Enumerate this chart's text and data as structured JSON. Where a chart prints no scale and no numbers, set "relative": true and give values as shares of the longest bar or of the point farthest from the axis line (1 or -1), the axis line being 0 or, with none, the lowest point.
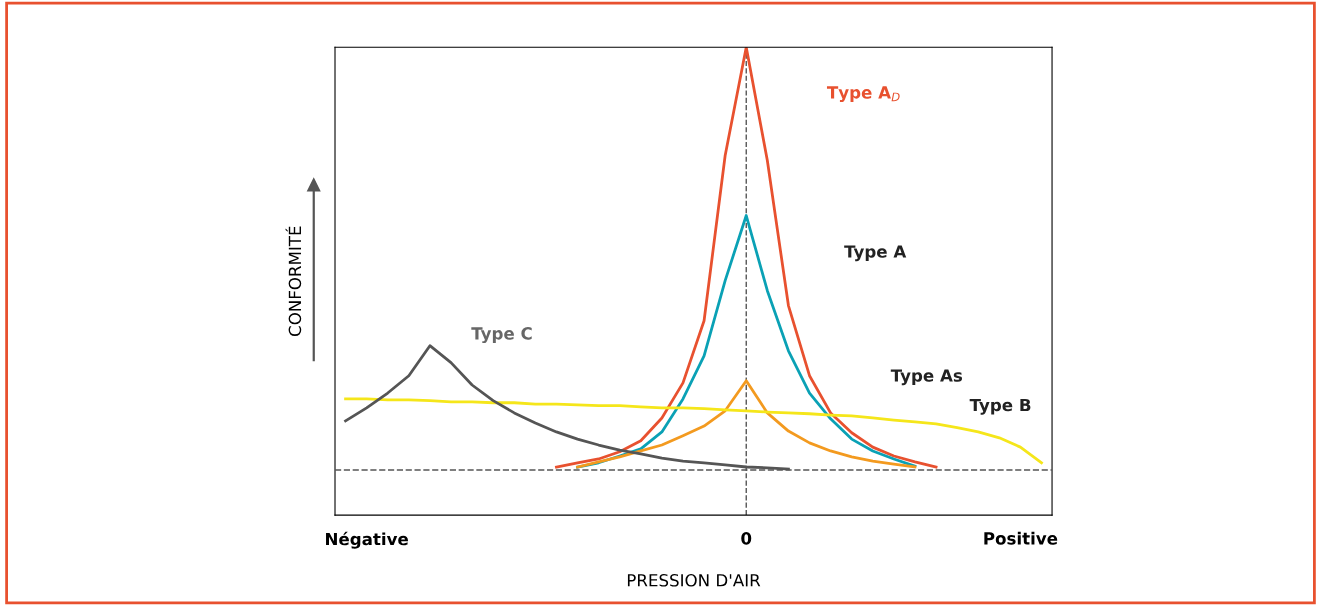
{
  "chart_data": {
    "type": "line",
    "relative": true,
    "xlabel": "PRESSION D'AIR",
    "ylabel": "CONFORMITÉ",
    "categories": [
      null,
      "Négative",
      null,
      null,
      null,
      null,
      null,
      null,
      null,
      null,
      null,
      null,
      null,
      null,
      null,
      null,
      null,
      null,
      null,
      "0",
      null,
      null,
      null,
      null,
      null,
      null,
      null,
      null,
      null,
      null,
      null,
      null,
      "Positive",
      null
    ],
    "grid": false,
    "legend": false,
    "marker": "none",
    "line_style": "solid",
    "ref_lines": [
      {
        "axis": "x",
        "value": "0",
        "label": null,
        "color": "#555555",
        "line_style": "dashed"
      }
    ],
    "series": [
      {
        "color": "#e8512f",
        "values": [
          null,
          null,
          null,
          null,
          null,
          null,
          null,
          null,
          null,
          null,
          0.007,
          0.017,
          0.026,
          0.043,
          0.069,
          0.123,
          0.206,
          0.353,
          0.744,
          1.0,
          0.732,
          0.389,
          0.223,
          0.135,
          0.088,
          0.054,
          0.033,
          0.019,
          0.007,
          null,
          null,
          null,
          null,
          null
        ]
      },
      {
        "color": "#0aa1b5",
        "values": [
          null,
          null,
          null,
          null,
          null,
          null,
          null,
          null,
          null,
          null,
          null,
          0.007,
          0.017,
          0.033,
          0.05,
          0.09,
          0.168,
          0.27,
          0.448,
          0.602,
          0.424,
          0.282,
          0.182,
          0.121,
          0.073,
          0.045,
          0.026,
          0.009,
          null,
          null,
          null,
          null,
          null,
          null
        ]
      },
      {
        "color": "#f39a1f",
        "values": [
          null,
          null,
          null,
          null,
          null,
          null,
          null,
          null,
          null,
          null,
          null,
          0.007,
          0.019,
          0.031,
          0.045,
          0.059,
          0.081,
          0.104,
          0.14,
          0.211,
          0.135,
          0.092,
          0.064,
          0.045,
          0.031,
          0.021,
          0.014,
          0.007,
          null,
          null,
          null,
          null,
          null,
          null
        ]
      },
      {
        "color": "#f5e61a",
        "values": [
          0.168,
          0.168,
          0.166,
          0.166,
          0.164,
          0.161,
          0.161,
          0.159,
          0.159,
          0.156,
          0.156,
          0.154,
          0.152,
          0.152,
          0.149,
          0.147,
          0.147,
          0.145,
          0.142,
          0.14,
          0.137,
          0.135,
          0.133,
          0.13,
          0.128,
          0.123,
          0.118,
          0.114,
          0.109,
          0.1,
          0.09,
          0.076,
          0.054,
          0.017
        ]
      },
      {
        "color": "#555555",
        "values": [
          0.116,
          0.147,
          0.182,
          0.223,
          0.294,
          0.254,
          0.201,
          0.164,
          0.135,
          0.111,
          0.09,
          0.073,
          0.059,
          0.047,
          0.038,
          0.028,
          0.021,
          0.017,
          0.012,
          0.007,
          0.005,
          0.002,
          null,
          null,
          null,
          null,
          null,
          null,
          null,
          null,
          null,
          null,
          null,
          null
        ]
      }
    ],
    "annotations": [
      "Type A$_{D}$",
      "Type A",
      "Type As",
      "Type B",
      "Type C"
    ]
  }
}
